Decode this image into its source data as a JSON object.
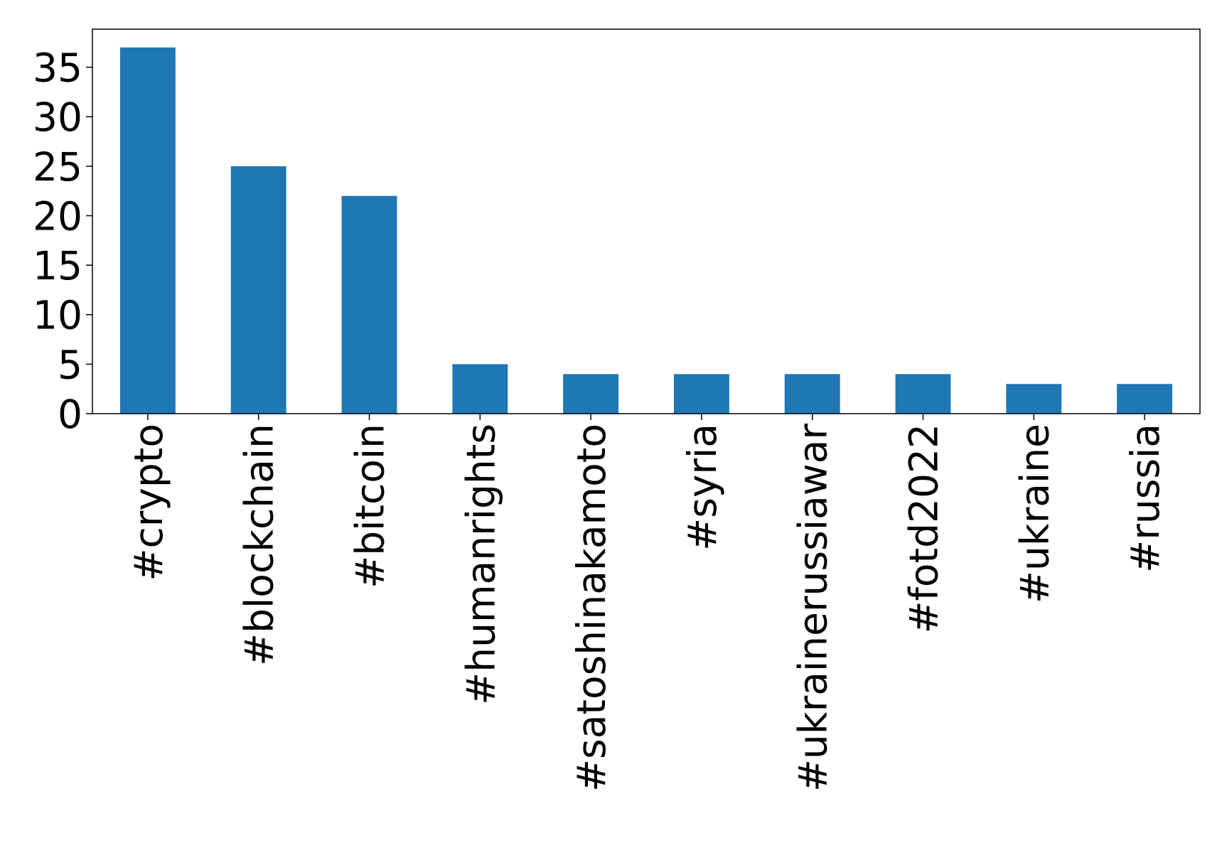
{
  "chart_data": {
    "type": "bar",
    "categories": [
      "#crypto",
      "#blockchain",
      "#bitcoin",
      "#humanrights",
      "#satoshinakamoto",
      "#syria",
      "#ukrainerussiawar",
      "#fotd2022",
      "#ukraine",
      "#russia"
    ],
    "values": [
      37,
      25,
      22,
      5,
      4,
      4,
      4,
      4,
      3,
      3
    ],
    "color": "#1f77b4",
    "ylim": [
      0,
      38.85
    ],
    "yticks": [
      0,
      5,
      10,
      15,
      20,
      25,
      30,
      35
    ],
    "grid": false
  }
}
